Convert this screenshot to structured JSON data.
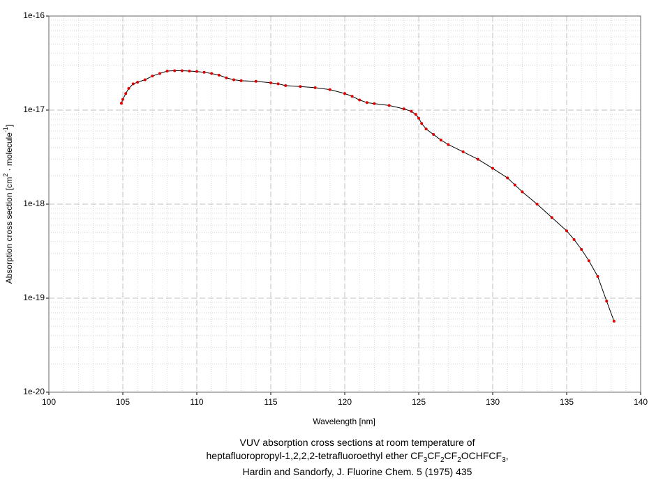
{
  "chart_data": {
    "type": "line",
    "x_label": "Wavelength [nm]",
    "y_label": "Absorption cross section [cm2 · molecule-1]",
    "caption": [
      "VUV absorption cross sections at room temperature of",
      "heptafluoropropyl-1,2,2,2-tetrafluoroethyl ether CF3CF2CF2OCHFCF3,",
      "Hardin and Sandorfy, J. Fluorine Chem. 5 (1975) 435"
    ],
    "xlim": [
      100,
      140
    ],
    "xticks": [
      100,
      105,
      110,
      115,
      120,
      125,
      130,
      135,
      140
    ],
    "ylim": [
      1e-20,
      1e-16
    ],
    "yscale": "log",
    "yticks": [
      {
        "value": 1e-20,
        "label": "1e-20"
      },
      {
        "value": 1e-19,
        "label": "1e-19"
      },
      {
        "value": 1e-18,
        "label": "1e-18"
      },
      {
        "value": 1e-17,
        "label": "1e-17"
      },
      {
        "value": 1e-16,
        "label": "1e-16"
      }
    ],
    "grid": true,
    "series": [
      {
        "line_color": "#000000",
        "color": "#e00000",
        "x": [
          104.9,
          105.0,
          105.2,
          105.4,
          105.7,
          106.0,
          106.5,
          107.0,
          107.5,
          108.0,
          108.5,
          109.0,
          109.5,
          110.0,
          110.5,
          111.0,
          111.5,
          112.0,
          112.5,
          113.0,
          114.0,
          115.0,
          115.5,
          116.0,
          117.0,
          118.0,
          119.0,
          120.0,
          120.5,
          121.0,
          121.5,
          122.0,
          123.0,
          124.0,
          124.5,
          124.8,
          125.0,
          125.2,
          125.5,
          126.0,
          126.5,
          127.0,
          128.0,
          129.0,
          130.0,
          131.0,
          131.5,
          132.0,
          133.0,
          134.0,
          135.0,
          135.5,
          136.0,
          136.5,
          137.1,
          137.7,
          138.2
        ],
        "values": [
          1.18e-17,
          1.3e-17,
          1.5e-17,
          1.7e-17,
          1.9e-17,
          1.98e-17,
          2.1e-17,
          2.3e-17,
          2.45e-17,
          2.6e-17,
          2.62e-17,
          2.62e-17,
          2.6e-17,
          2.57e-17,
          2.52e-17,
          2.45e-17,
          2.35e-17,
          2.2e-17,
          2.1e-17,
          2.05e-17,
          2.02e-17,
          1.95e-17,
          1.9e-17,
          1.82e-17,
          1.78e-17,
          1.73e-17,
          1.65e-17,
          1.5e-17,
          1.4e-17,
          1.28e-17,
          1.2e-17,
          1.17e-17,
          1.12e-17,
          1.03e-17,
          9.7e-18,
          9e-18,
          8.2e-18,
          7.2e-18,
          6.3e-18,
          5.5e-18,
          4.8e-18,
          4.3e-18,
          3.6e-18,
          3e-18,
          2.4e-18,
          1.9e-18,
          1.6e-18,
          1.35e-18,
          1e-18,
          7.2e-19,
          5.2e-19,
          4.2e-19,
          3.3e-19,
          2.5e-19,
          1.7e-19,
          9.3e-20,
          5.7e-20
        ]
      }
    ]
  }
}
